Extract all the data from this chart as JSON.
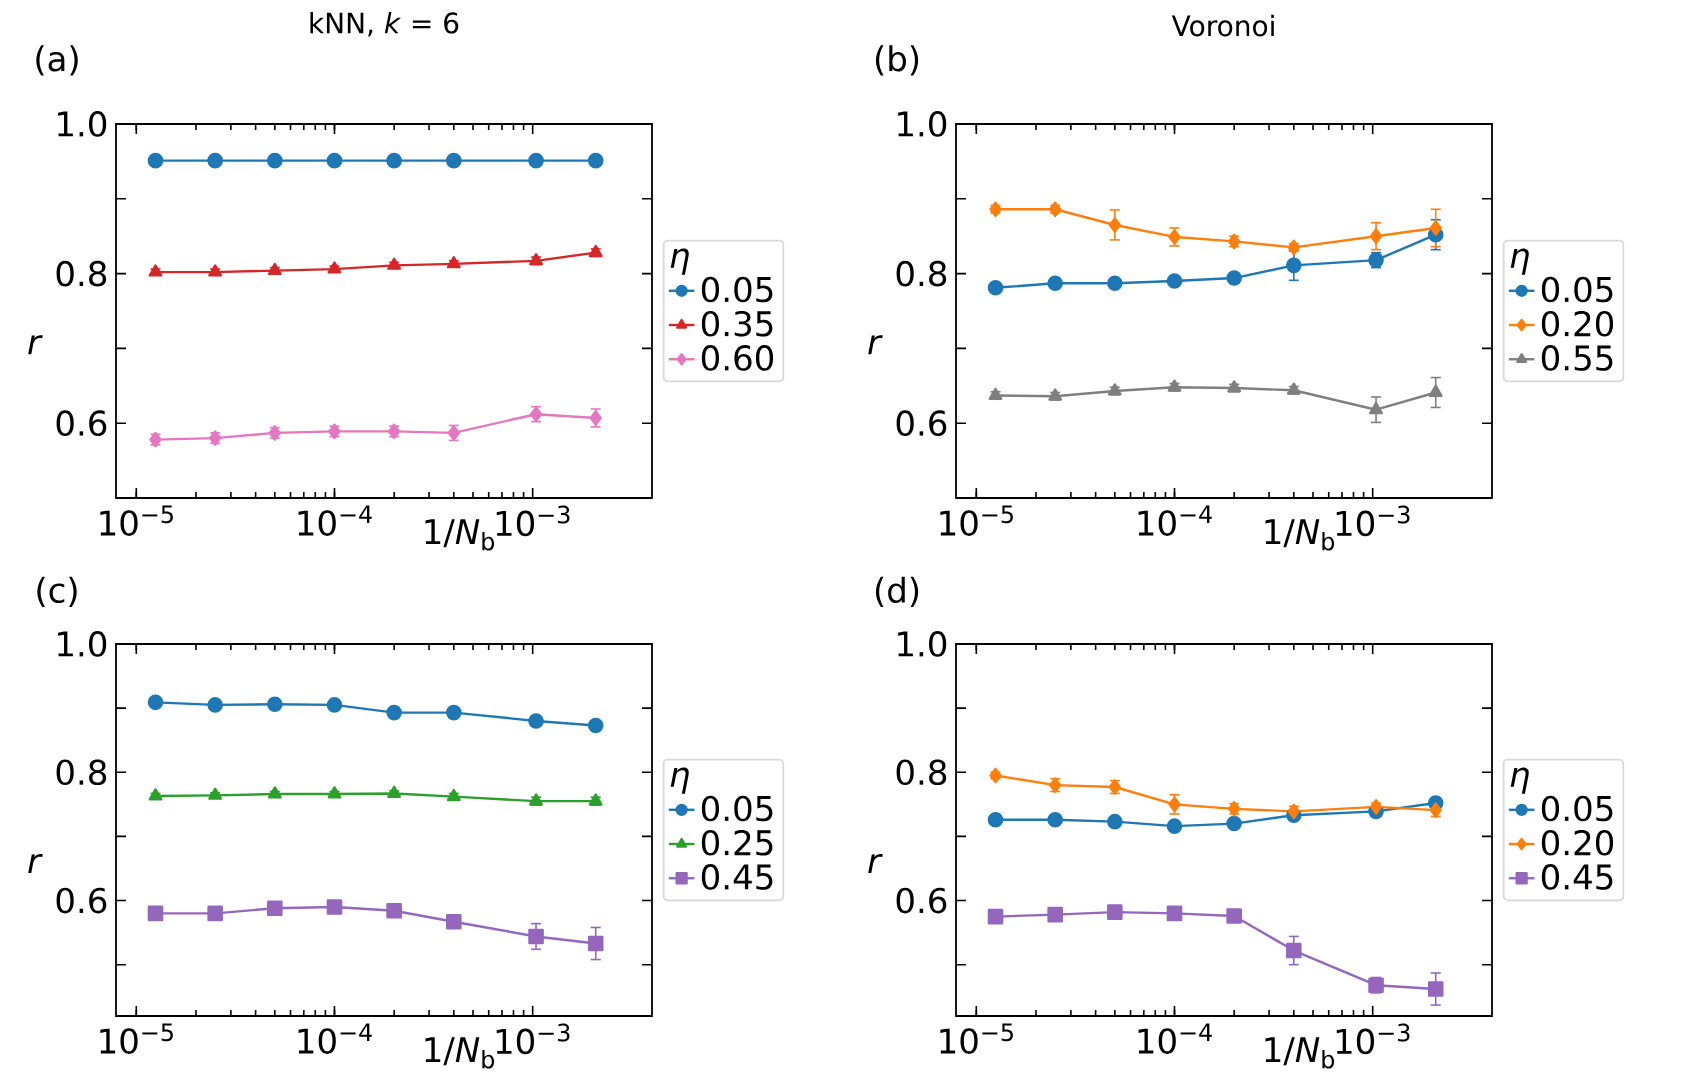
{
  "chart_data": [
    {
      "type": "line",
      "title": "kNN, *k* = 6",
      "annotations": [
        "(a)"
      ],
      "xlabel": "1/*N*$_{b}$",
      "ylabel": "r",
      "legend_title": "η",
      "legend": "right",
      "log": "x",
      "x": [
        1.25e-05,
        2.5e-05,
        5e-05,
        0.0001,
        0.0002,
        0.0004,
        0.00104,
        0.00208
      ],
      "xlim": [
        7.9e-06,
        0.004
      ],
      "xticks": [
        {
          "value": 1e-05,
          "label": "10$^{−5}$"
        },
        {
          "value": 0.0001,
          "label": "10$^{−4}$"
        },
        {
          "value": 0.001,
          "label": "10$^{−3}$"
        }
      ],
      "ylim": [
        0.5,
        1.0
      ],
      "yticks": [
        {
          "value": 0.6,
          "label": "0.6"
        },
        {
          "value": 0.7,
          "label": null
        },
        {
          "value": 0.8,
          "label": "0.8"
        },
        {
          "value": 0.9,
          "label": null
        },
        {
          "value": 1.0,
          "label": "1.0"
        }
      ],
      "series": [
        {
          "name": "0.05",
          "color": "#1f77b4",
          "marker": "circle",
          "values": [
            0.951,
            0.951,
            0.951,
            0.951,
            0.951,
            0.951,
            0.951,
            0.951
          ],
          "errors": [
            0.003,
            0.003,
            0.003,
            0.003,
            0.003,
            0.003,
            0.003,
            0.003
          ]
        },
        {
          "name": "0.35",
          "color": "#d62728",
          "marker": "triangle",
          "values": [
            0.802,
            0.802,
            0.804,
            0.806,
            0.811,
            0.813,
            0.817,
            0.828
          ],
          "errors": [
            0.004,
            0.004,
            0.004,
            0.004,
            0.004,
            0.004,
            0.005,
            0.005
          ]
        },
        {
          "name": "0.60",
          "color": "#e377c2",
          "marker": "diamond",
          "values": [
            0.578,
            0.58,
            0.587,
            0.589,
            0.589,
            0.587,
            0.612,
            0.607
          ],
          "errors": [
            0.007,
            0.007,
            0.007,
            0.007,
            0.007,
            0.01,
            0.01,
            0.012
          ]
        }
      ]
    },
    {
      "type": "line",
      "title": "Voronoi",
      "annotations": [
        "(b)"
      ],
      "xlabel": "1/*N*$_{b}$",
      "ylabel": "r",
      "legend_title": "η",
      "legend": "right",
      "log": "x",
      "x": [
        1.25e-05,
        2.5e-05,
        5e-05,
        0.0001,
        0.0002,
        0.0004,
        0.00104,
        0.00208
      ],
      "xlim": [
        7.9e-06,
        0.004
      ],
      "xticks": [
        {
          "value": 1e-05,
          "label": "10$^{−5}$"
        },
        {
          "value": 0.0001,
          "label": "10$^{−4}$"
        },
        {
          "value": 0.001,
          "label": "10$^{−3}$"
        }
      ],
      "ylim": [
        0.5,
        1.0
      ],
      "yticks": [
        {
          "value": 0.6,
          "label": "0.6"
        },
        {
          "value": 0.7,
          "label": null
        },
        {
          "value": 0.8,
          "label": "0.8"
        },
        {
          "value": 0.9,
          "label": null
        },
        {
          "value": 1.0,
          "label": "1.0"
        }
      ],
      "series": [
        {
          "name": "0.05",
          "color": "#1f77b4",
          "marker": "circle",
          "values": [
            0.781,
            0.787,
            0.787,
            0.79,
            0.794,
            0.811,
            0.818,
            0.852
          ],
          "errors": [
            0.004,
            0.004,
            0.005,
            0.005,
            0.007,
            0.02,
            0.01,
            0.02
          ]
        },
        {
          "name": "0.20",
          "color": "#ff7f0e",
          "marker": "diamond",
          "values": [
            0.886,
            0.886,
            0.865,
            0.849,
            0.843,
            0.835,
            0.85,
            0.861
          ],
          "errors": [
            0.005,
            0.005,
            0.02,
            0.012,
            0.007,
            0.005,
            0.018,
            0.025
          ]
        },
        {
          "name": "0.55",
          "color": "#7f7f7f",
          "marker": "triangle",
          "values": [
            0.637,
            0.636,
            0.643,
            0.648,
            0.647,
            0.644,
            0.618,
            0.641
          ],
          "errors": [
            0.005,
            0.005,
            0.005,
            0.005,
            0.005,
            0.005,
            0.017,
            0.02
          ]
        }
      ]
    },
    {
      "type": "line",
      "annotations": [
        "(c)"
      ],
      "xlabel": "1/*N*$_{b}$",
      "ylabel": "r",
      "legend_title": "η",
      "legend": "right",
      "log": "x",
      "x": [
        1.25e-05,
        2.5e-05,
        5e-05,
        0.0001,
        0.0002,
        0.0004,
        0.00104,
        0.00208
      ],
      "xlim": [
        7.9e-06,
        0.004
      ],
      "xticks": [
        {
          "value": 1e-05,
          "label": "10$^{−5}$"
        },
        {
          "value": 0.0001,
          "label": "10$^{−4}$"
        },
        {
          "value": 0.001,
          "label": "10$^{−3}$"
        }
      ],
      "ylim": [
        0.42,
        1.0
      ],
      "yticks": [
        {
          "value": 0.5,
          "label": null
        },
        {
          "value": 0.6,
          "label": "0.6"
        },
        {
          "value": 0.7,
          "label": null
        },
        {
          "value": 0.8,
          "label": "0.8"
        },
        {
          "value": 0.9,
          "label": null
        },
        {
          "value": 1.0,
          "label": "1.0"
        }
      ],
      "series": [
        {
          "name": "0.05",
          "color": "#1f77b4",
          "marker": "circle",
          "values": [
            0.909,
            0.905,
            0.906,
            0.905,
            0.893,
            0.893,
            0.88,
            0.873
          ],
          "errors": [
            0.003,
            0.003,
            0.003,
            0.003,
            0.003,
            0.003,
            0.004,
            0.004
          ]
        },
        {
          "name": "0.25",
          "color": "#2ca02c",
          "marker": "triangle",
          "values": [
            0.763,
            0.764,
            0.766,
            0.766,
            0.767,
            0.762,
            0.755,
            0.755
          ],
          "errors": [
            0.004,
            0.004,
            0.004,
            0.004,
            0.004,
            0.005,
            0.006,
            0.006
          ]
        },
        {
          "name": "0.45",
          "color": "#9467bd",
          "marker": "square",
          "values": [
            0.58,
            0.58,
            0.588,
            0.59,
            0.584,
            0.567,
            0.544,
            0.533
          ],
          "errors": [
            0.005,
            0.005,
            0.005,
            0.005,
            0.005,
            0.008,
            0.02,
            0.025
          ]
        }
      ]
    },
    {
      "type": "line",
      "annotations": [
        "(d)"
      ],
      "xlabel": "1/*N*$_{b}$",
      "ylabel": "r",
      "legend_title": "η",
      "legend": "right",
      "log": "x",
      "x": [
        1.25e-05,
        2.5e-05,
        5e-05,
        0.0001,
        0.0002,
        0.0004,
        0.00104,
        0.00208
      ],
      "xlim": [
        7.9e-06,
        0.004
      ],
      "xticks": [
        {
          "value": 1e-05,
          "label": "10$^{−5}$"
        },
        {
          "value": 0.0001,
          "label": "10$^{−4}$"
        },
        {
          "value": 0.001,
          "label": "10$^{−3}$"
        }
      ],
      "ylim": [
        0.42,
        1.0
      ],
      "yticks": [
        {
          "value": 0.5,
          "label": null
        },
        {
          "value": 0.6,
          "label": "0.6"
        },
        {
          "value": 0.7,
          "label": null
        },
        {
          "value": 0.8,
          "label": "0.8"
        },
        {
          "value": 0.9,
          "label": null
        },
        {
          "value": 1.0,
          "label": "1.0"
        }
      ],
      "series": [
        {
          "name": "0.05",
          "color": "#1f77b4",
          "marker": "circle",
          "values": [
            0.726,
            0.726,
            0.723,
            0.716,
            0.72,
            0.733,
            0.739,
            0.752
          ],
          "errors": [
            0.004,
            0.004,
            0.004,
            0.004,
            0.004,
            0.004,
            0.007,
            0.008
          ]
        },
        {
          "name": "0.20",
          "color": "#ff7f0e",
          "marker": "diamond",
          "values": [
            0.795,
            0.78,
            0.777,
            0.75,
            0.743,
            0.739,
            0.746,
            0.741
          ],
          "errors": [
            0.005,
            0.01,
            0.01,
            0.015,
            0.008,
            0.008,
            0.006,
            0.01
          ]
        },
        {
          "name": "0.45",
          "color": "#9467bd",
          "marker": "square",
          "values": [
            0.575,
            0.578,
            0.582,
            0.58,
            0.576,
            0.522,
            0.468,
            0.462
          ],
          "errors": [
            0.005,
            0.005,
            0.005,
            0.005,
            0.005,
            0.022,
            0.012,
            0.025
          ]
        }
      ]
    }
  ]
}
